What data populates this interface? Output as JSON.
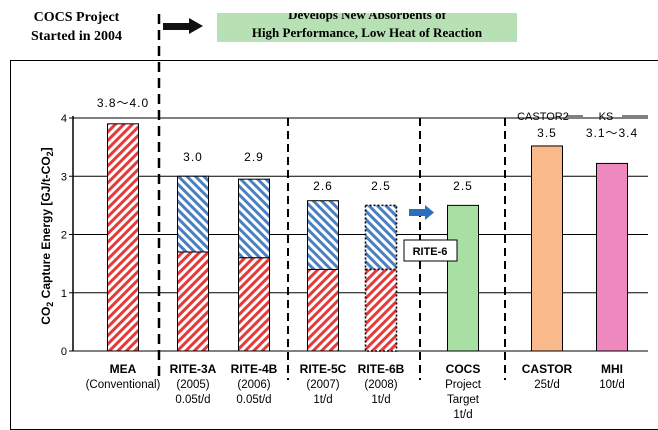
{
  "header": {
    "project_line1": "COCS Project",
    "project_line2": "Started in 2004",
    "banner_line1": "Develops New Absorbents of",
    "banner_line2": "High Performance, Low Heat of Reaction"
  },
  "colors": {
    "red_hatch": "#e53a3a",
    "blue_hatch": "#4a7fc1",
    "cocs_green": "#a8dfa3",
    "castor_orange": "#f9b98a",
    "mhi_pink": "#ef8ac0",
    "banner_green": "#b7e1b4",
    "arrow_blue": "#2a6fbf"
  },
  "chart_data": {
    "type": "bar",
    "ylabel_main": "CO",
    "ylabel_sub1": "2",
    "ylabel_mid": " Capture Energy  [GJ/t-CO",
    "ylabel_sub2": "2",
    "ylabel_end": "]",
    "ylim": [
      0,
      4
    ],
    "yticks": [
      "0",
      "1",
      "2",
      "3",
      "4"
    ],
    "grid": true,
    "side_labels": {
      "castor2": "CASTOR2",
      "ks": "KS"
    },
    "annotation": "RITE-6",
    "bars": [
      {
        "name": "MEA",
        "sub1": "(Conventional)",
        "sub2": "",
        "sub3": "",
        "value_label": "3.8～4.0",
        "total": 3.9,
        "lower": 3.9,
        "fill": "red-hatch"
      },
      {
        "name": "RITE-3A",
        "sub1": "(2005)",
        "sub2": "0.05t/d",
        "sub3": "",
        "value_label": "3.0",
        "total": 3.0,
        "lower": 1.7,
        "fill": "red-blue-hatch"
      },
      {
        "name": "RITE-4B",
        "sub1": "(2006)",
        "sub2": "0.05t/d",
        "sub3": "",
        "value_label": "2.9",
        "total": 2.95,
        "lower": 1.6,
        "fill": "red-blue-hatch"
      },
      {
        "name": "RITE-5C",
        "sub1": "(2007)",
        "sub2": "1t/d",
        "sub3": "",
        "value_label": "2.6",
        "total": 2.58,
        "lower": 1.4,
        "fill": "red-blue-hatch"
      },
      {
        "name": "RITE-6B",
        "sub1": "(2008)",
        "sub2": "1t/d",
        "sub3": "",
        "value_label": "2.5",
        "total": 2.5,
        "lower": 1.4,
        "fill": "red-blue-hatch-dotted"
      },
      {
        "name": "COCS",
        "sub1": "Project",
        "sub2": "Target",
        "sub3": "1t/d",
        "value_label": "2.5",
        "total": 2.5,
        "lower": 2.5,
        "fill": "green"
      },
      {
        "name": "CASTOR",
        "sub1": "25t/d",
        "sub2": "",
        "sub3": "",
        "value_label": "3.5",
        "total": 3.52,
        "lower": 3.52,
        "fill": "orange"
      },
      {
        "name": "MHI",
        "sub1": "10t/d",
        "sub2": "",
        "sub3": "",
        "value_label": "3.1～3.4",
        "total": 3.22,
        "lower": 3.22,
        "fill": "pink"
      }
    ]
  }
}
